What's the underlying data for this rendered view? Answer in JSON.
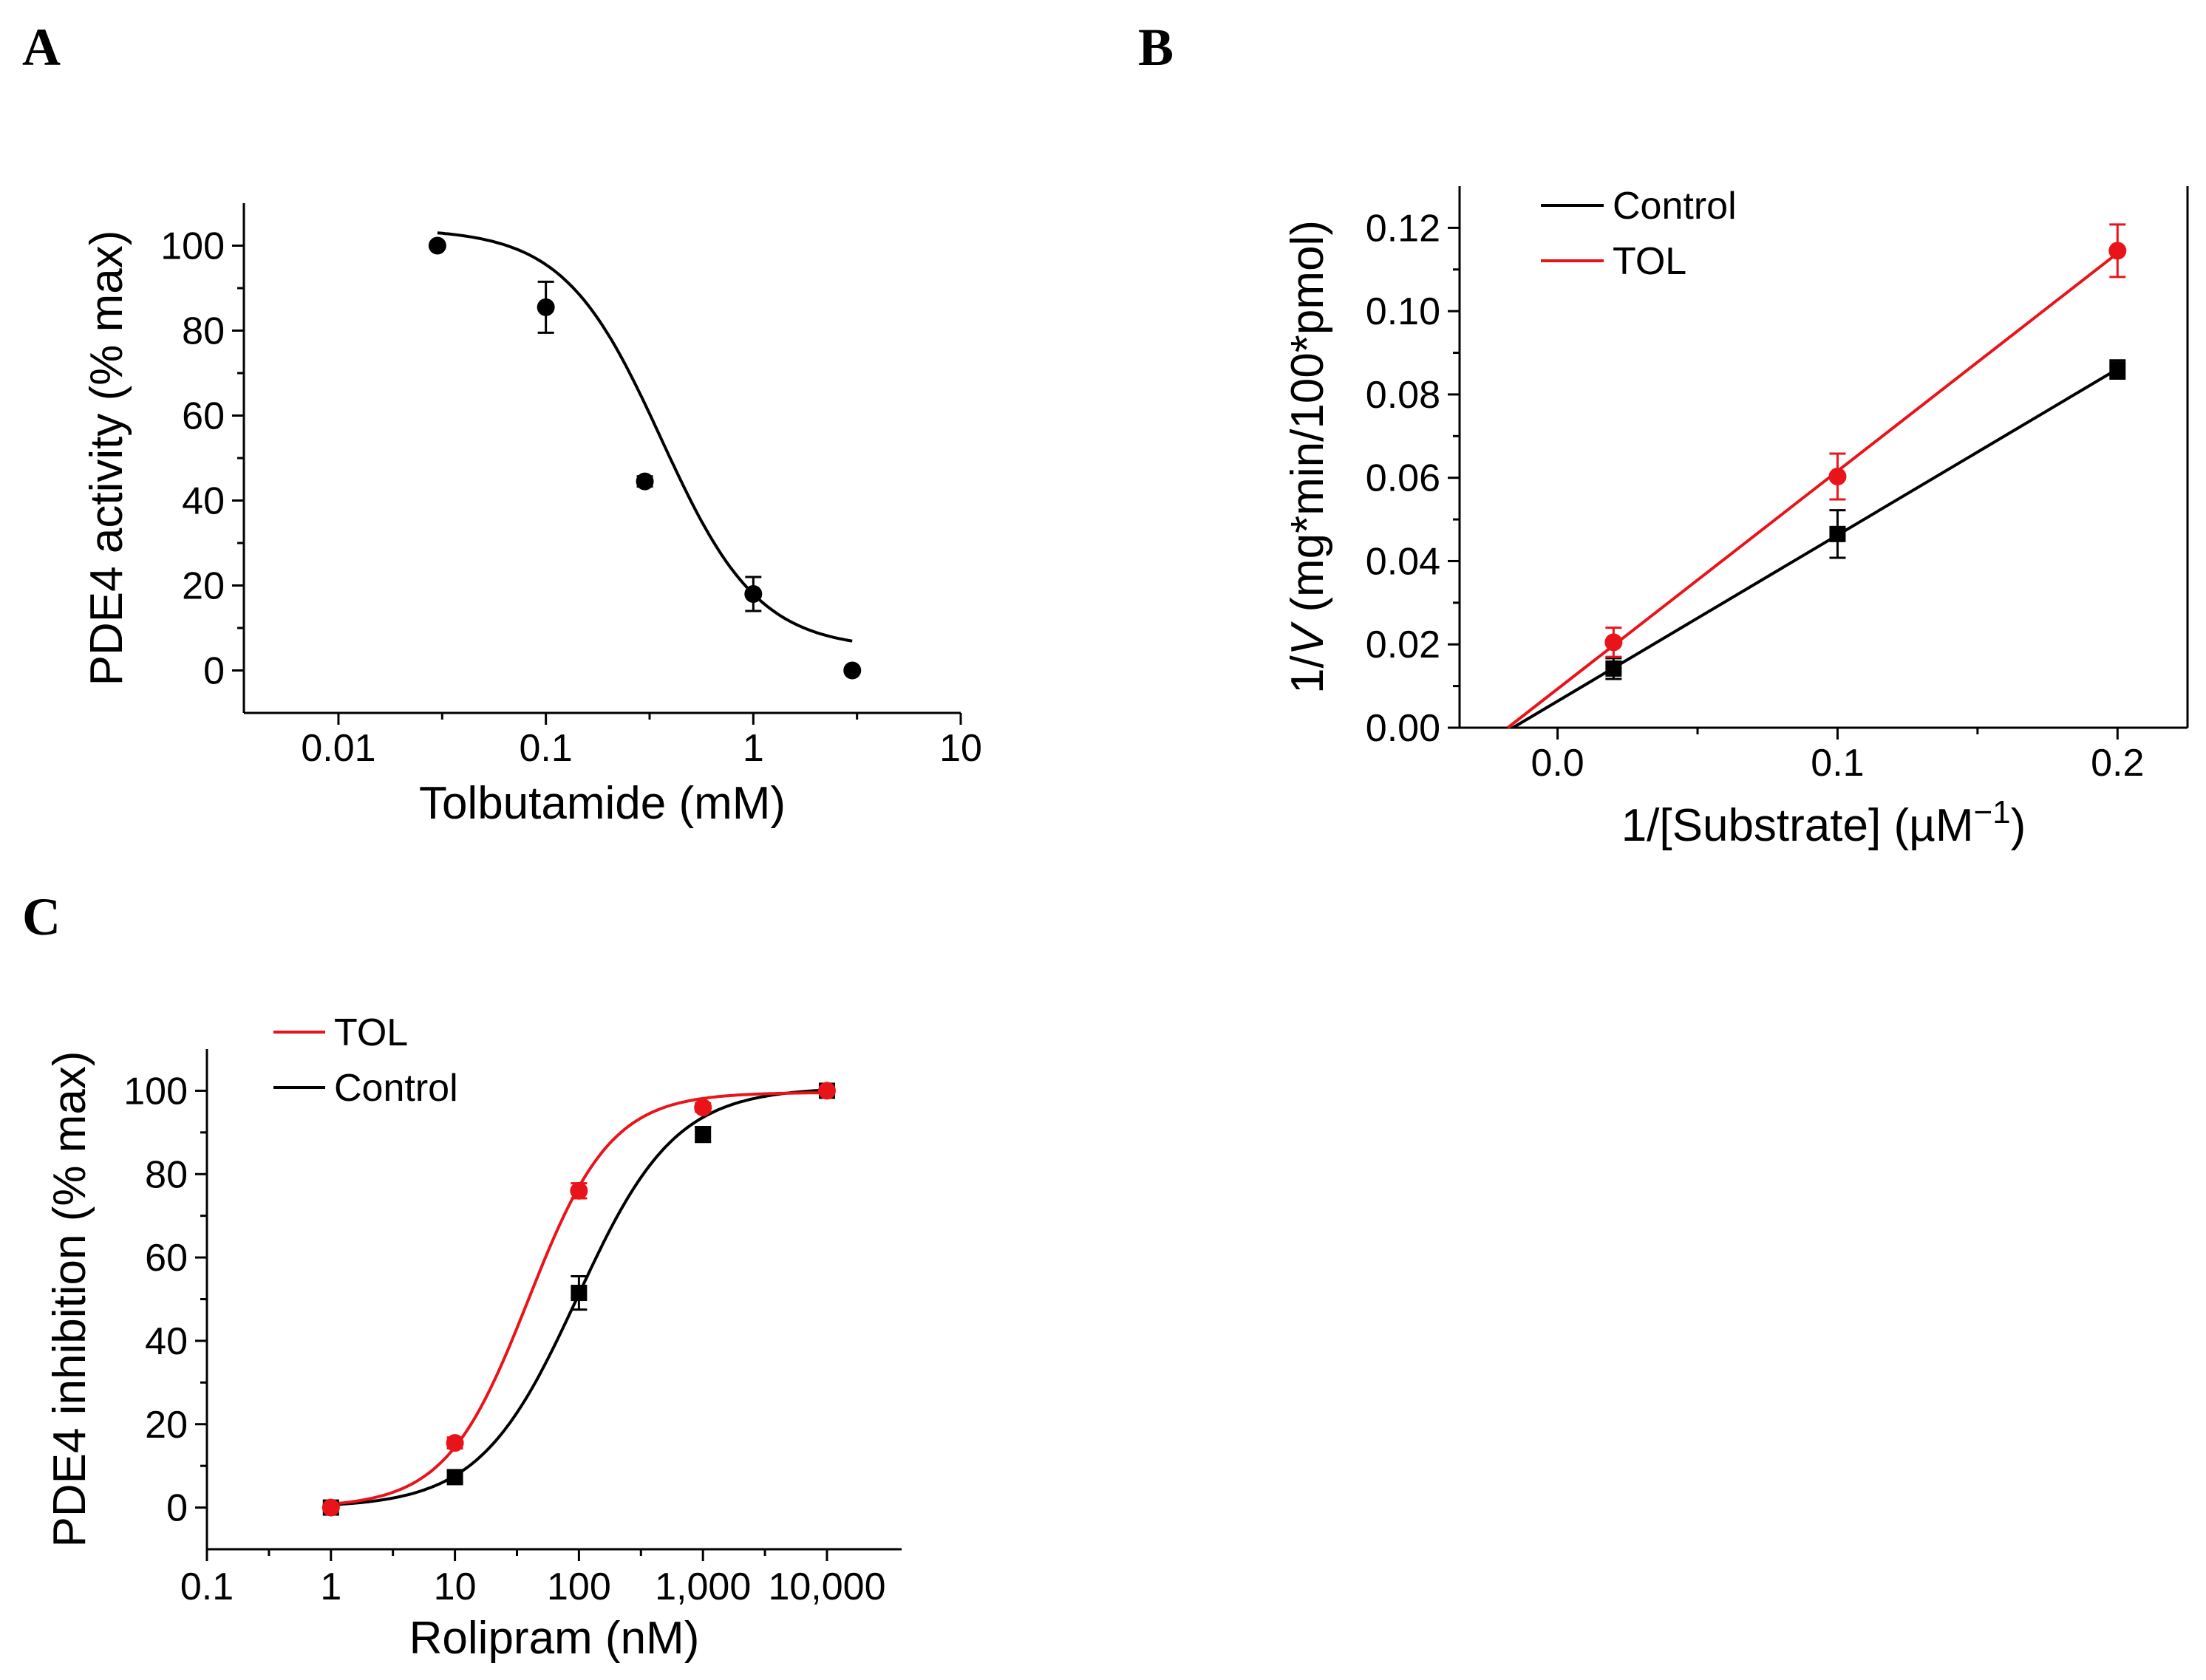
{
  "panels": [
    {
      "label": "A"
    },
    {
      "label": "B"
    },
    {
      "label": "C"
    }
  ],
  "chart_data": [
    {
      "type": "scatter",
      "panel": "A",
      "xscale": "log",
      "xlabel": "Tolbutamide (mM)",
      "ylabel": "PDE4 activity (% max)",
      "xlim": [
        0.0035,
        10
      ],
      "ylim": [
        -10,
        110
      ],
      "xticks": [
        0.01,
        0.1,
        1,
        10
      ],
      "xtick_labels": [
        "0.01",
        "0.1",
        "1",
        "10"
      ],
      "yticks": [
        0,
        20,
        40,
        60,
        80,
        100
      ],
      "ytick_labels": [
        "0",
        "20",
        "40",
        "60",
        "80",
        "100"
      ],
      "series": [
        {
          "name": "Tolbutamide",
          "color": "#000000",
          "marker": "circle",
          "x": [
            0.03,
            0.1,
            0.3,
            1,
            3
          ],
          "values": [
            100,
            85.5,
            44.5,
            18,
            0
          ],
          "errors": [
            0,
            6,
            1.2,
            4,
            0
          ],
          "fit": {
            "model": "sigmoid-log",
            "bottom": 5,
            "top": 104,
            "ec50": 0.36,
            "hill": -1.85,
            "x_range": [
              0.03,
              3
            ]
          }
        }
      ]
    },
    {
      "type": "line",
      "panel": "B",
      "xlabel_main": "1/[Substrate] (µM",
      "xlabel_sup": "−1",
      "xlabel_end": ")",
      "ylabel_main": "1/",
      "ylabel_italic": "V",
      "ylabel_rest": " (mg*min/100*pmol)",
      "xlim": [
        -0.035,
        0.225
      ],
      "ylim": [
        0,
        0.13
      ],
      "xticks": [
        0.0,
        0.1,
        0.2
      ],
      "xtick_labels": [
        "0.0",
        "0.1",
        "0.2"
      ],
      "yticks": [
        0,
        0.02,
        0.04,
        0.06,
        0.08,
        0.1,
        0.12
      ],
      "ytick_labels": [
        "0.00",
        "0.02",
        "0.04",
        "0.06",
        "0.08",
        "0.10",
        "0.12"
      ],
      "legend": "top-left",
      "series": [
        {
          "name": "Control",
          "color": "#000000",
          "marker": "square",
          "x": [
            0.02,
            0.1,
            0.2
          ],
          "values": [
            0.0142,
            0.0465,
            0.086
          ],
          "errors": [
            0.0025,
            0.0057,
            0.0022
          ],
          "fit_range": [
            -0.018,
            0.2
          ]
        },
        {
          "name": "TOL",
          "color": "#e8141a",
          "marker": "circle",
          "x": [
            0.02,
            0.1,
            0.2
          ],
          "values": [
            0.0205,
            0.0603,
            0.1145
          ],
          "errors": [
            0.0035,
            0.0055,
            0.0063
          ],
          "fit_range": [
            -0.018,
            0.2
          ]
        }
      ]
    },
    {
      "type": "line",
      "panel": "C",
      "xscale": "log",
      "xlabel": "Rolipram (nM)",
      "ylabel": "PDE4 inhibition (% max)",
      "xlim": [
        0.1,
        40000
      ],
      "ylim": [
        -10,
        110
      ],
      "xticks": [
        0.1,
        1,
        10,
        100,
        1000,
        10000
      ],
      "xtick_labels": [
        "0.1",
        "1",
        "10",
        "100",
        "1,000",
        "10,000"
      ],
      "yticks": [
        0,
        20,
        40,
        60,
        80,
        100
      ],
      "ytick_labels": [
        "0",
        "20",
        "40",
        "60",
        "80",
        "100"
      ],
      "legend": "top-left",
      "series": [
        {
          "name": "TOL",
          "color": "#e8141a",
          "marker": "circle",
          "x": [
            1,
            10,
            100,
            1000,
            10000
          ],
          "values": [
            0,
            15.5,
            76,
            96,
            100
          ],
          "errors": [
            0,
            1.3,
            1.8,
            1,
            0.6
          ],
          "fit": {
            "model": "sigmoid-log",
            "bottom": 0,
            "top": 99.6,
            "ec50": 39,
            "hill": 1.3,
            "x_range": [
              1,
              10000
            ]
          }
        },
        {
          "name": "Control",
          "color": "#000000",
          "marker": "square",
          "x": [
            1,
            10,
            100,
            1000,
            10000
          ],
          "values": [
            0,
            7.3,
            51.5,
            89.5,
            100
          ],
          "errors": [
            0,
            1.3,
            4,
            1.8,
            0.6
          ],
          "fit": {
            "model": "sigmoid-log",
            "bottom": 0,
            "top": 100.8,
            "ec50": 97,
            "hill": 1.1,
            "x_range": [
              1,
              10000
            ]
          }
        }
      ]
    }
  ]
}
